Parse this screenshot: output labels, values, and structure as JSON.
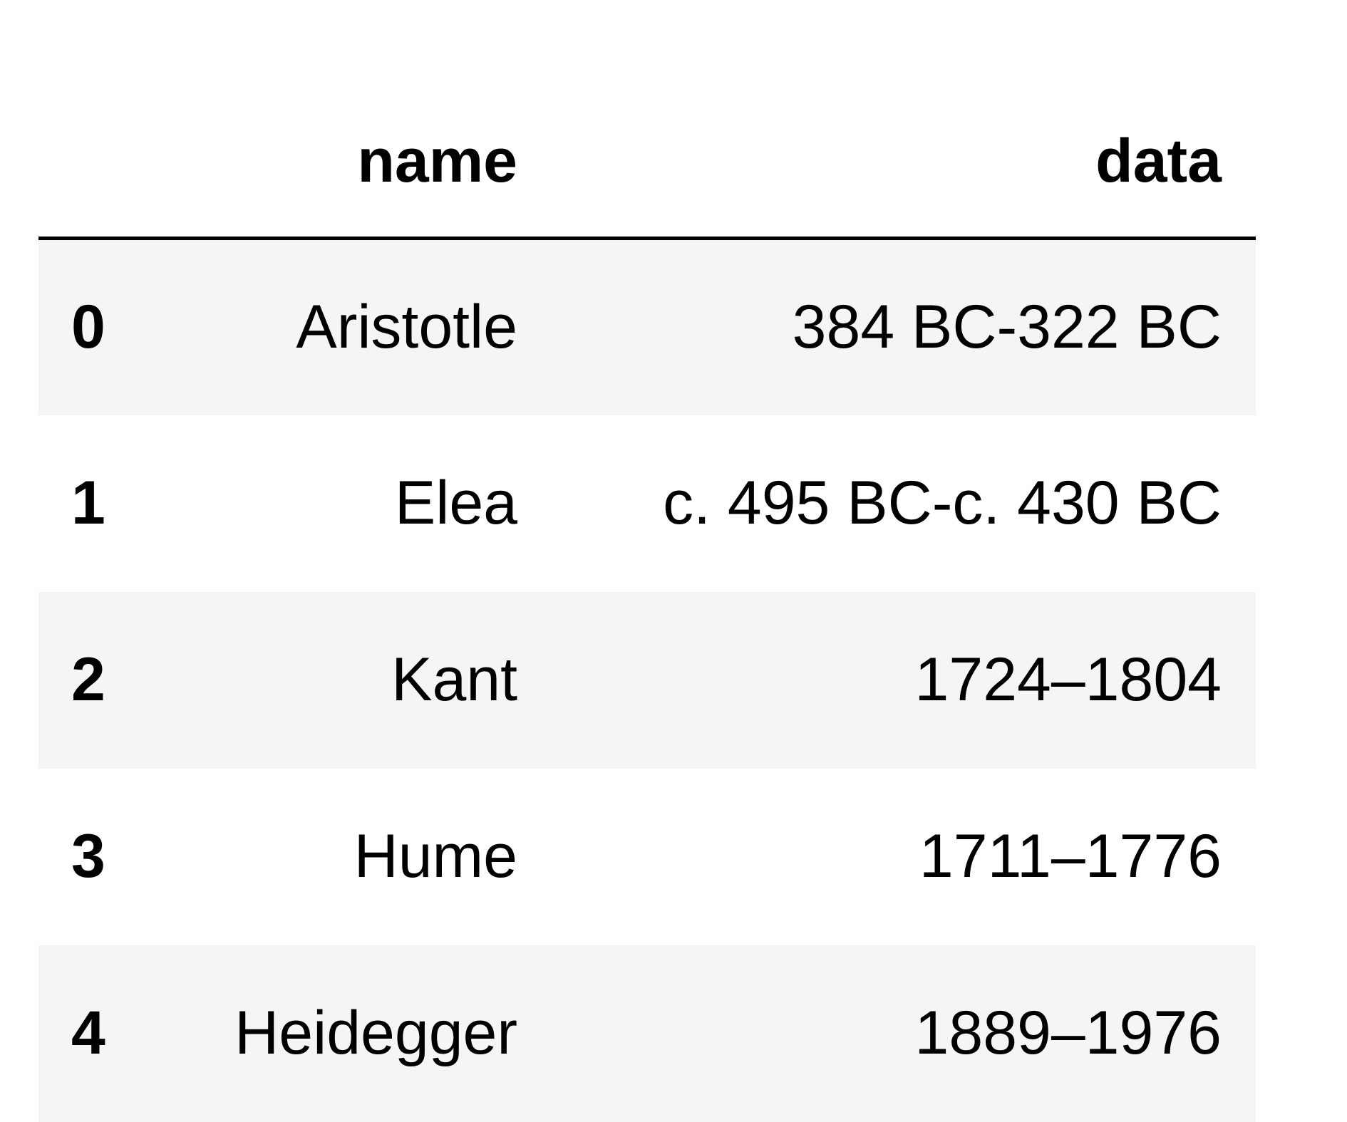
{
  "table": {
    "columns": [
      "name",
      "data"
    ],
    "rows": [
      {
        "index": "0",
        "name": "Aristotle",
        "data": "384 BC-322 BC"
      },
      {
        "index": "1",
        "name": "Elea",
        "data": "c. 495 BC-c. 430 BC"
      },
      {
        "index": "2",
        "name": "Kant",
        "data": "1724–1804"
      },
      {
        "index": "3",
        "name": "Hume",
        "data": "1711–1776"
      },
      {
        "index": "4",
        "name": "Heidegger",
        "data": "1889–1976"
      }
    ]
  },
  "colors": {
    "stripe": "#f5f5f5",
    "text": "#000000",
    "header_rule": "#000000",
    "background": "#ffffff"
  }
}
